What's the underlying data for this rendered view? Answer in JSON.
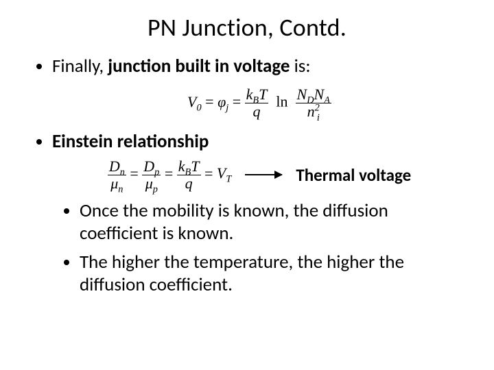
{
  "title": {
    "text": "PN Junction, Contd.",
    "fontsize": 36,
    "color": "#000000"
  },
  "bullets": {
    "fontsize": 27,
    "color": "#000000",
    "items": [
      {
        "pre": "Finally, ",
        "bold": "junction built in voltage",
        "post": " is:"
      },
      {
        "bold": "Einstein relationship"
      }
    ]
  },
  "formula1": {
    "fontsize": 22,
    "V0": "V",
    "V0sub": "0",
    "eq": " = ",
    "phi": "φ",
    "phisub": "j",
    "kB": "k",
    "kBsub": "B",
    "T": "T",
    "q": "q",
    "ln": "ln",
    "ND": "N",
    "NDsub": "D",
    "NA": "N",
    "NAsub": "A",
    "ni": "n",
    "nisub": "i",
    "nisup": "2"
  },
  "formula2": {
    "fontsize": 22,
    "Dn": "D",
    "Dnsub": "n",
    "mun": "μ",
    "munsub": "n",
    "Dp": "D",
    "Dpsub": "p",
    "mup": "μ",
    "mupsub": "p",
    "kB": "k",
    "kBsub": "B",
    "T": "T",
    "q": "q",
    "VT": "V",
    "VTsub": "T",
    "eq": " = "
  },
  "thermal": {
    "text": "Thermal voltage",
    "fontsize": 25,
    "color": "#000000"
  },
  "sub_bullets": {
    "fontsize": 27,
    "items": [
      "Once the mobility is known, the diffusion coefficient is known.",
      "The higher the temperature, the higher the diffusion coefficient."
    ]
  },
  "background": "#ffffff"
}
